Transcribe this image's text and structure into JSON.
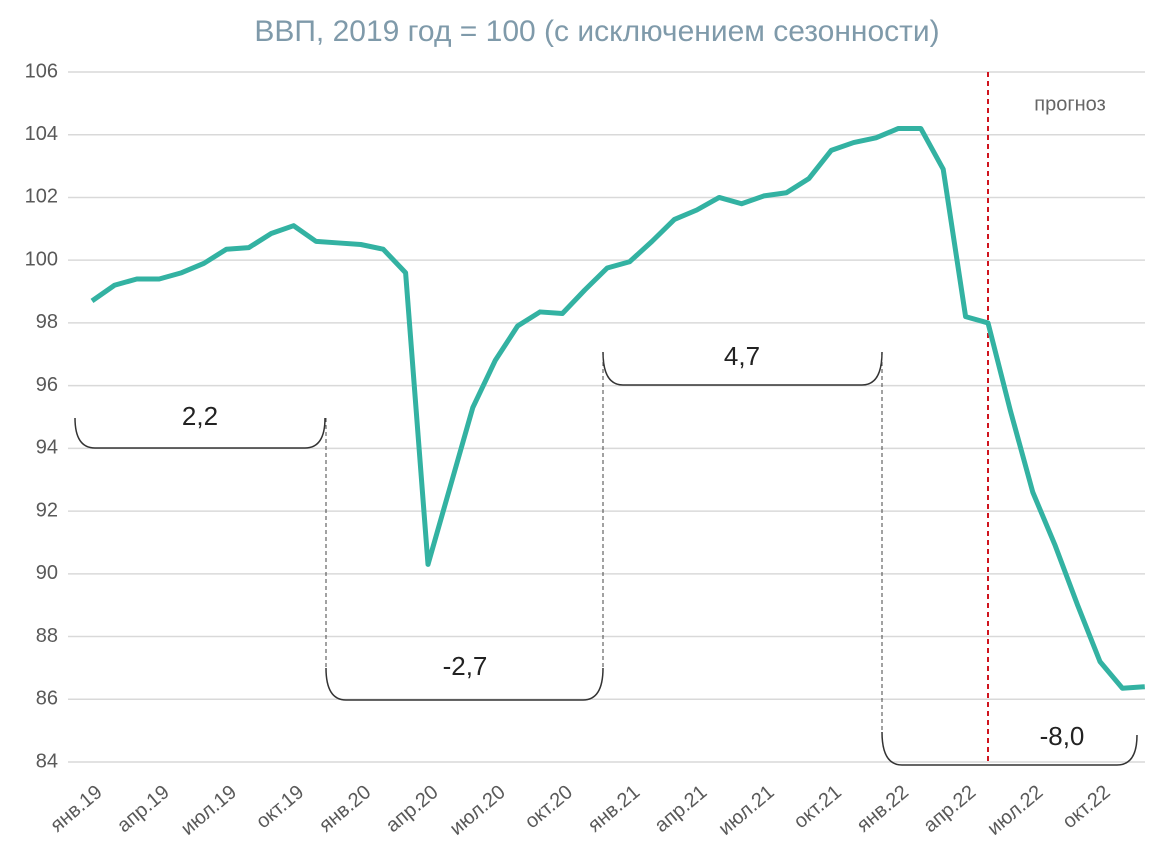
{
  "chart_data": {
    "type": "line",
    "title": "ВВП, 2019 год = 100 (с исключением сезонности)",
    "categories": [
      "янв.19",
      null,
      null,
      "апр.19",
      null,
      null,
      "июл.19",
      null,
      null,
      "окт.19",
      null,
      null,
      "янв.20",
      null,
      null,
      "апр.20",
      null,
      null,
      "июл.20",
      null,
      null,
      "окт.20",
      null,
      null,
      "янв.21",
      null,
      null,
      "апр.21",
      null,
      null,
      "июл.21",
      null,
      null,
      "окт.21",
      null,
      null,
      "янв.22",
      null,
      null,
      "апр.22",
      null,
      null,
      "июл.22",
      null,
      null,
      "окт.22",
      null,
      null
    ],
    "series": [
      {
        "name": "ВВП",
        "color": "#33b2a2",
        "values": [
          98.7,
          99.2,
          99.4,
          99.4,
          99.6,
          99.9,
          100.35,
          100.4,
          100.85,
          101.1,
          100.6,
          100.55,
          100.5,
          100.35,
          99.6,
          90.3,
          92.8,
          95.3,
          96.8,
          97.9,
          98.35,
          98.3,
          99.05,
          99.75,
          99.95,
          100.6,
          101.3,
          101.6,
          102.0,
          101.8,
          102.05,
          102.15,
          102.6,
          103.5,
          103.75,
          103.9,
          104.2,
          104.2,
          102.9,
          98.2,
          98.0,
          95.2,
          92.6,
          90.9,
          89.0,
          87.2,
          86.35,
          86.4
        ]
      }
    ],
    "ylim": [
      84,
      106
    ],
    "yticks": [
      84,
      86,
      88,
      90,
      92,
      94,
      96,
      98,
      100,
      102,
      104,
      106
    ],
    "grid": true,
    "forecast": {
      "text": "прогноз",
      "x": 40
    },
    "annotations": [
      "2,2",
      "-2,7",
      "4,7",
      "-8,0"
    ]
  }
}
